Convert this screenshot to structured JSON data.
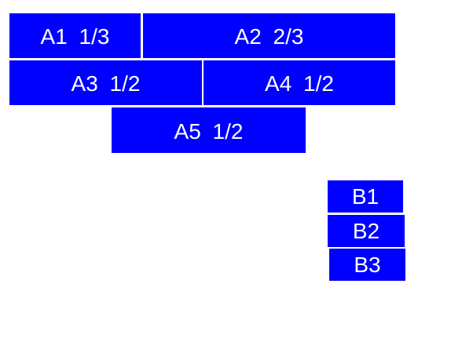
{
  "window": {
    "background": "#ffffff"
  },
  "palette": {
    "box_fill": "#0000ff",
    "box_text": "#ffffff"
  },
  "group_a": {
    "items": [
      {
        "text": "A1 1/3"
      },
      {
        "text": "A2 2/3"
      },
      {
        "text": "A3 1/2"
      },
      {
        "text": "A4 1/2"
      },
      {
        "text": "A5 1/2"
      }
    ]
  },
  "group_b": {
    "items": [
      {
        "text": "B1"
      },
      {
        "text": "B2"
      },
      {
        "text": "B3"
      }
    ]
  }
}
